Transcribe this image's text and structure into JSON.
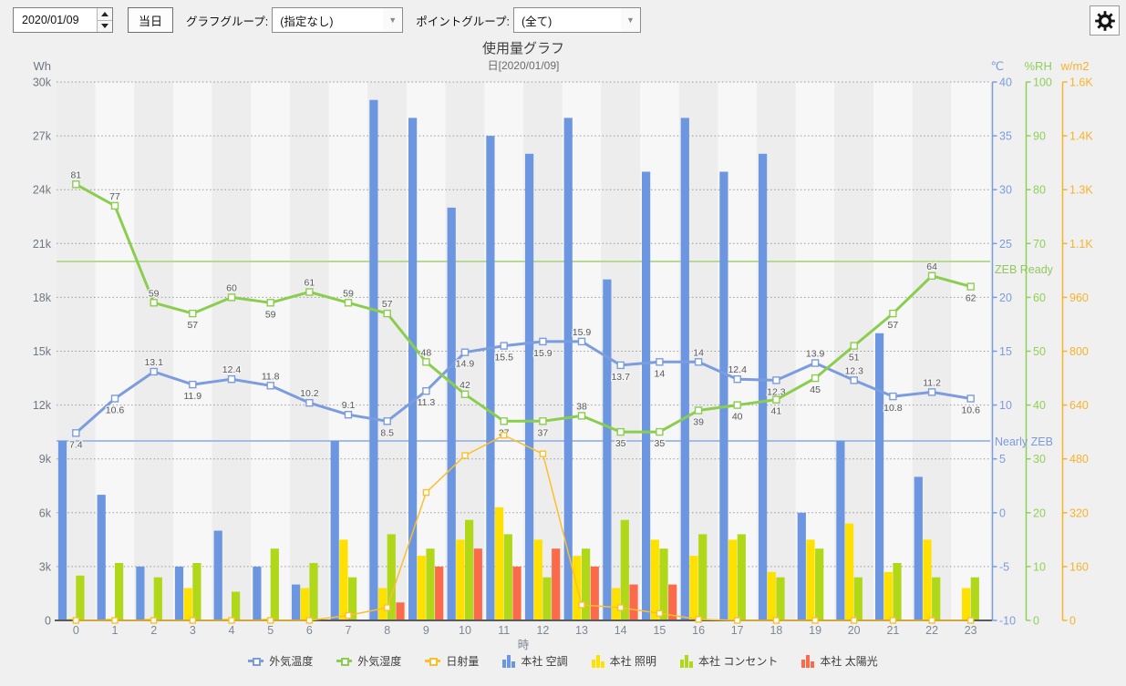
{
  "toolbar": {
    "date_value": "2020/01/09",
    "today_label": "当日",
    "graph_group_label": "グラフグループ:",
    "graph_group_value": "(指定なし)",
    "point_group_label": "ポイントグループ:",
    "point_group_value": "(全て)"
  },
  "chart": {
    "title": "使用量グラフ",
    "subtitle": "日[2020/01/09]"
  },
  "chart_data": {
    "type": "bar",
    "title": "使用量グラフ",
    "subtitle": "日[2020/01/09]",
    "xlabel": "時",
    "x": [
      0,
      1,
      2,
      3,
      4,
      5,
      6,
      7,
      8,
      9,
      10,
      11,
      12,
      13,
      14,
      15,
      16,
      17,
      18,
      19,
      20,
      21,
      22,
      23
    ],
    "axes": {
      "wh": {
        "label": "Wh",
        "min": 0,
        "max": 30000,
        "tick_labels": [
          "30k",
          "27k",
          "24k",
          "21k",
          "18k",
          "15k",
          "12k",
          "9k",
          "6k",
          "3k",
          "0"
        ],
        "color": "#6f7780"
      },
      "temp": {
        "label": "℃",
        "min": -10,
        "max": 40,
        "tick_labels": [
          "40",
          "35",
          "30",
          "25",
          "20",
          "15",
          "10",
          "5",
          "0",
          "-5",
          "-10"
        ],
        "color": "#7b9cde"
      },
      "rh": {
        "label": "%RH",
        "min": 0,
        "max": 100,
        "tick_labels": [
          "100",
          "90",
          "80",
          "70",
          "60",
          "50",
          "40",
          "30",
          "20",
          "10",
          "0"
        ],
        "color": "#8fd058"
      },
      "solar": {
        "label": "w/m2",
        "min": 0,
        "max": 1600,
        "tick_labels": [
          "1.6K",
          "1.4K",
          "1.3K",
          "1.1K",
          "960",
          "800",
          "640",
          "480",
          "320",
          "160",
          "0"
        ],
        "color": "#f7b32c"
      }
    },
    "series": [
      {
        "name": "外気温度",
        "kind": "line",
        "axis": "temp",
        "color": "#7b9cde",
        "labeled": true,
        "values": [
          7.4,
          10.6,
          13.1,
          11.9,
          12.4,
          11.8,
          10.2,
          9.1,
          8.5,
          11.3,
          14.9,
          15.5,
          15.9,
          15.9,
          13.7,
          14,
          14,
          12.4,
          12.3,
          13.9,
          12.3,
          10.8,
          11.2,
          10.6
        ],
        "label_side": [
          "b",
          "b",
          "a",
          "b",
          "a",
          "a",
          "a",
          "a",
          "b",
          "b",
          "b",
          "b",
          "b",
          "a",
          "b",
          "b",
          "a",
          "a",
          "b",
          "a",
          "a",
          "b",
          "a",
          "b"
        ]
      },
      {
        "name": "外気湿度",
        "kind": "line",
        "axis": "rh",
        "color": "#8bcd4f",
        "labeled": true,
        "values": [
          81,
          77,
          59,
          57,
          60,
          59,
          61,
          59,
          57,
          48,
          42,
          37,
          37,
          38,
          35,
          35,
          39,
          40,
          41,
          45,
          51,
          57,
          64,
          62
        ],
        "label_side": [
          "a",
          "a",
          "a",
          "b",
          "a",
          "b",
          "a",
          "a",
          "a",
          "a",
          "a",
          "b",
          "b",
          "a",
          "b",
          "b",
          "b",
          "b",
          "b",
          "b",
          "b",
          "b",
          "a",
          "b"
        ]
      },
      {
        "name": "日射量",
        "kind": "line",
        "axis": "solar",
        "color": "#fbbf2c",
        "labeled": false,
        "values": [
          0,
          0,
          0,
          0,
          0,
          0,
          0,
          15,
          38,
          380,
          490,
          550,
          495,
          46,
          38,
          21,
          3,
          0,
          0,
          0,
          0,
          0,
          0,
          0
        ]
      },
      {
        "name": "本社 空調",
        "kind": "bar",
        "axis": "wh",
        "color": "#6d96e0",
        "values": [
          10000,
          7000,
          3000,
          3000,
          5000,
          3000,
          2000,
          10000,
          29000,
          28000,
          23000,
          27000,
          26000,
          28000,
          19000,
          25000,
          28000,
          25000,
          26000,
          6000,
          10000,
          16000,
          8000,
          0
        ]
      },
      {
        "name": "本社 照明",
        "kind": "bar",
        "axis": "wh",
        "color": "#ffe100",
        "values": [
          100,
          100,
          100,
          1800,
          100,
          100,
          1800,
          4500,
          1800,
          3600,
          4500,
          6300,
          4500,
          3600,
          1800,
          4500,
          3600,
          4500,
          2700,
          4500,
          5400,
          2700,
          4500,
          1800
        ]
      },
      {
        "name": "本社 コンセント",
        "kind": "bar",
        "axis": "wh",
        "color": "#b0d718",
        "values": [
          2500,
          3200,
          2400,
          3200,
          1600,
          4000,
          3200,
          2400,
          4800,
          4000,
          5600,
          4800,
          2400,
          4000,
          5600,
          4000,
          4800,
          4800,
          2400,
          4000,
          2400,
          3200,
          2400,
          2400
        ]
      },
      {
        "name": "本社 太陽光",
        "kind": "bar",
        "axis": "wh",
        "color": "#fc6a4c",
        "values": [
          0,
          0,
          0,
          0,
          0,
          0,
          0,
          0,
          1000,
          3000,
          4000,
          3000,
          4000,
          3000,
          2000,
          2000,
          0,
          0,
          0,
          0,
          0,
          0,
          0,
          0
        ]
      }
    ],
    "reference_lines": [
      {
        "label": "ZEB Ready",
        "axis": "wh",
        "value": 20000,
        "line_color": "#b6da92",
        "label_color": "#8fc95e"
      },
      {
        "label": "Nearly ZEB",
        "axis": "wh",
        "value": 10000,
        "line_color": "#a3bce8",
        "label_color": "#7b9cde"
      }
    ],
    "legend_position": "bottom",
    "grid": "horizontal-dotted"
  },
  "legend": {
    "items": [
      {
        "label": "外気温度",
        "type": "line",
        "color": "#7b9cde"
      },
      {
        "label": "外気湿度",
        "type": "line",
        "color": "#8bcd4f"
      },
      {
        "label": "日射量",
        "type": "line",
        "color": "#fbbf2c"
      },
      {
        "label": "本社 空調",
        "type": "bar",
        "color": "#6d96e0"
      },
      {
        "label": "本社 照明",
        "type": "bar",
        "color": "#ffe100"
      },
      {
        "label": "本社 コンセント",
        "type": "bar",
        "color": "#b0d718"
      },
      {
        "label": "本社 太陽光",
        "type": "bar",
        "color": "#fc6a4c"
      }
    ]
  }
}
